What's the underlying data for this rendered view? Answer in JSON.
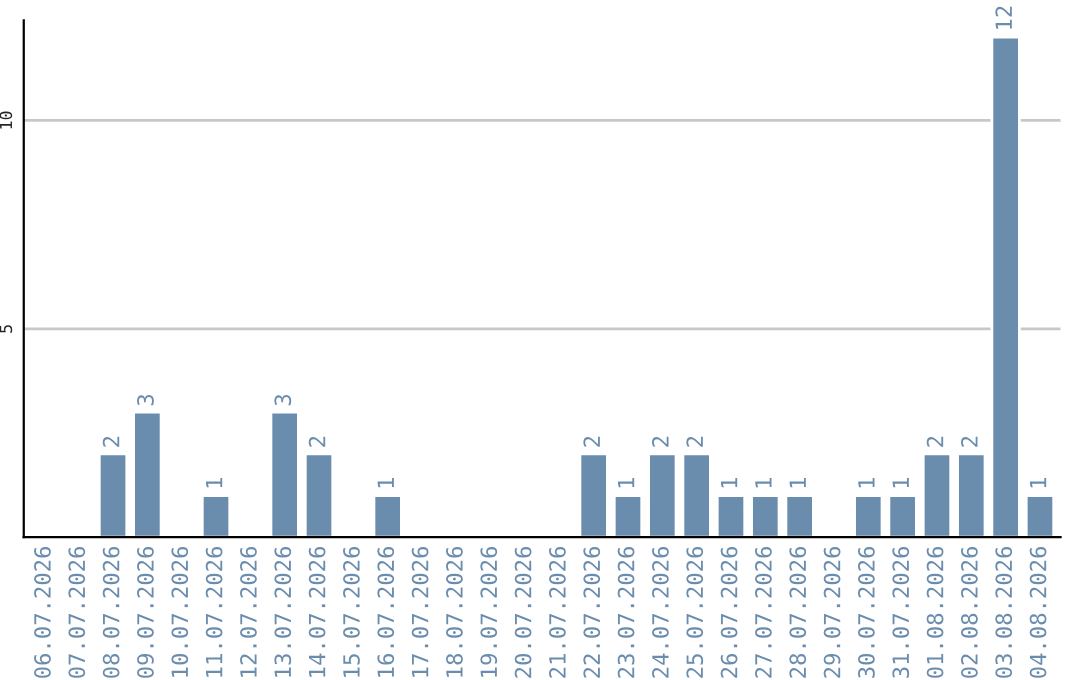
{
  "chart_data": {
    "type": "bar",
    "categories": [
      "06.07.2026",
      "07.07.2026",
      "08.07.2026",
      "09.07.2026",
      "10.07.2026",
      "11.07.2026",
      "12.07.2026",
      "13.07.2026",
      "14.07.2026",
      "15.07.2026",
      "16.07.2026",
      "17.07.2026",
      "18.07.2026",
      "19.07.2026",
      "20.07.2026",
      "21.07.2026",
      "22.07.2026",
      "23.07.2026",
      "24.07.2026",
      "25.07.2026",
      "26.07.2026",
      "27.07.2026",
      "28.07.2026",
      "29.07.2026",
      "30.07.2026",
      "31.07.2026",
      "01.08.2026",
      "02.08.2026",
      "03.08.2026",
      "04.08.2026"
    ],
    "values": [
      null,
      null,
      2,
      3,
      null,
      1,
      null,
      3,
      2,
      null,
      1,
      null,
      null,
      null,
      null,
      null,
      2,
      1,
      2,
      2,
      1,
      1,
      1,
      null,
      1,
      1,
      2,
      2,
      12,
      1
    ],
    "value_labels": [
      null,
      null,
      "2",
      "3",
      null,
      "1",
      null,
      "3",
      "2",
      null,
      "1",
      null,
      null,
      null,
      null,
      null,
      "2",
      "1",
      "2",
      "2",
      "1",
      "1",
      "1",
      null,
      "1",
      "1",
      "2",
      "2",
      "12",
      "1"
    ],
    "color": "#6a8cad",
    "ylim": [
      0,
      12.4
    ],
    "yticks": [
      5,
      10
    ],
    "grid": "y",
    "legend": false
  }
}
